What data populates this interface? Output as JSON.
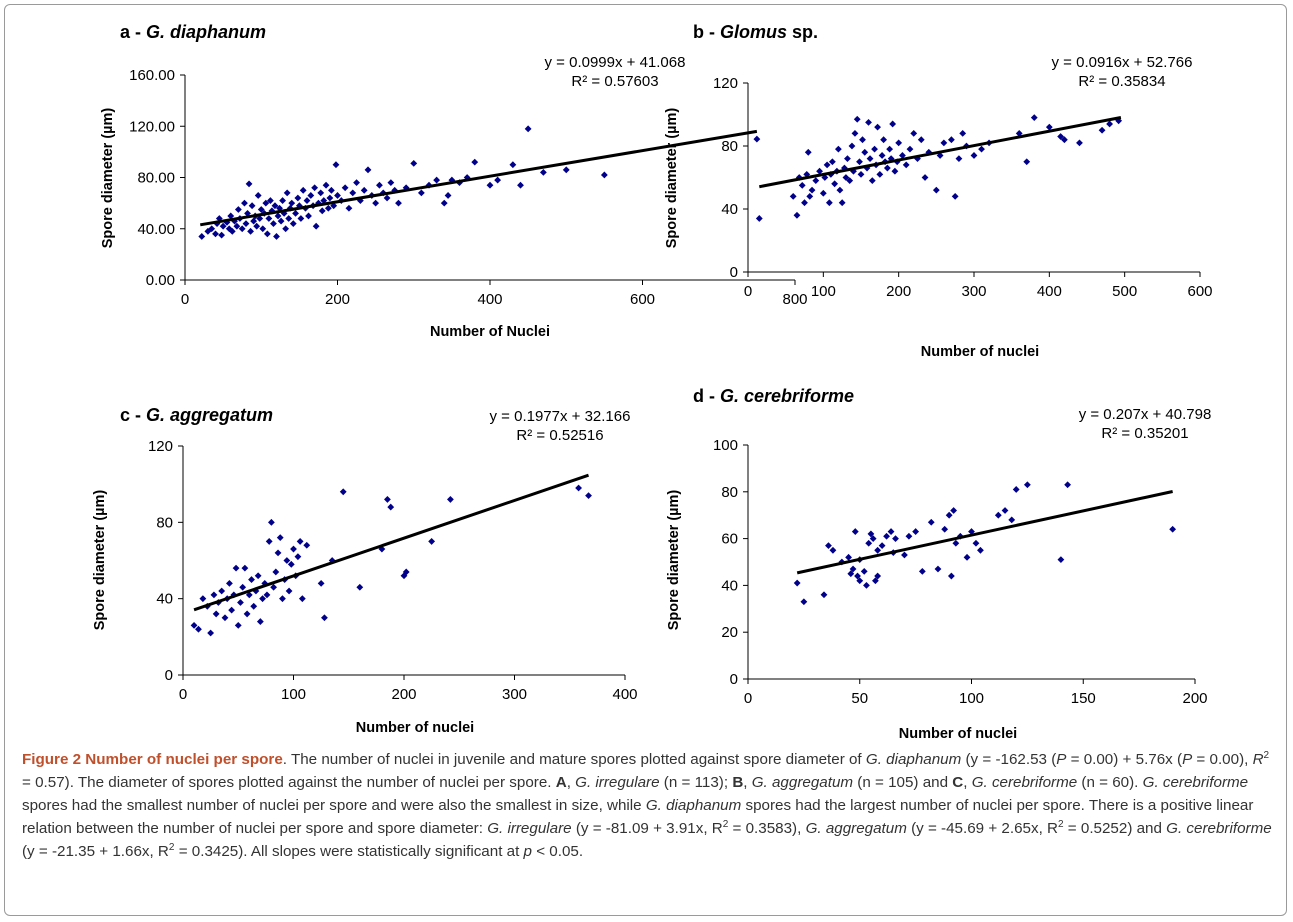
{
  "chart_data": [
    {
      "type": "scatter",
      "title": "G. diaphanum",
      "title_prefix": "a - ",
      "title_italic": true,
      "xlabel": "Number of Nuclei",
      "ylabel": "Spore diameter (µm)",
      "xlim": [
        0,
        800
      ],
      "ylim": [
        0,
        160
      ],
      "xticks": [
        0,
        200,
        400,
        600,
        800
      ],
      "yticks": [
        0,
        40,
        80,
        120,
        160
      ],
      "ytick_labels": [
        "0.00",
        "40.00",
        "80.00",
        "120.00",
        "160.00"
      ],
      "equation": "y = 0.0999x + 41.068",
      "r2": "R² = 0.57603",
      "trendline": {
        "slope": 0.0999,
        "intercept": 41.068,
        "x_range": [
          20,
          750
        ]
      },
      "marker_color": "#00008b",
      "points": [
        [
          22,
          34
        ],
        [
          30,
          38
        ],
        [
          35,
          40
        ],
        [
          40,
          36
        ],
        [
          42,
          44
        ],
        [
          45,
          48
        ],
        [
          48,
          35
        ],
        [
          50,
          42
        ],
        [
          55,
          45
        ],
        [
          58,
          40
        ],
        [
          60,
          50
        ],
        [
          62,
          38
        ],
        [
          65,
          46
        ],
        [
          68,
          42
        ],
        [
          70,
          55
        ],
        [
          72,
          48
        ],
        [
          75,
          40
        ],
        [
          78,
          60
        ],
        [
          80,
          44
        ],
        [
          82,
          52
        ],
        [
          84,
          75
        ],
        [
          86,
          38
        ],
        [
          88,
          58
        ],
        [
          90,
          46
        ],
        [
          92,
          50
        ],
        [
          94,
          42
        ],
        [
          96,
          66
        ],
        [
          98,
          48
        ],
        [
          100,
          55
        ],
        [
          102,
          40
        ],
        [
          104,
          52
        ],
        [
          106,
          60
        ],
        [
          108,
          36
        ],
        [
          110,
          48
        ],
        [
          112,
          62
        ],
        [
          114,
          54
        ],
        [
          116,
          44
        ],
        [
          118,
          58
        ],
        [
          120,
          34
        ],
        [
          122,
          50
        ],
        [
          124,
          56
        ],
        [
          126,
          46
        ],
        [
          128,
          62
        ],
        [
          130,
          52
        ],
        [
          132,
          40
        ],
        [
          134,
          68
        ],
        [
          136,
          48
        ],
        [
          138,
          56
        ],
        [
          140,
          60
        ],
        [
          142,
          44
        ],
        [
          145,
          52
        ],
        [
          148,
          64
        ],
        [
          150,
          58
        ],
        [
          152,
          48
        ],
        [
          155,
          70
        ],
        [
          158,
          56
        ],
        [
          160,
          62
        ],
        [
          162,
          50
        ],
        [
          165,
          66
        ],
        [
          168,
          58
        ],
        [
          170,
          72
        ],
        [
          172,
          42
        ],
        [
          175,
          60
        ],
        [
          178,
          68
        ],
        [
          180,
          54
        ],
        [
          182,
          62
        ],
        [
          185,
          74
        ],
        [
          188,
          56
        ],
        [
          190,
          64
        ],
        [
          192,
          70
        ],
        [
          195,
          58
        ],
        [
          198,
          90
        ],
        [
          200,
          66
        ],
        [
          205,
          62
        ],
        [
          210,
          72
        ],
        [
          215,
          56
        ],
        [
          220,
          68
        ],
        [
          225,
          76
        ],
        [
          230,
          62
        ],
        [
          235,
          70
        ],
        [
          240,
          86
        ],
        [
          245,
          66
        ],
        [
          250,
          60
        ],
        [
          255,
          74
        ],
        [
          260,
          68
        ],
        [
          265,
          64
        ],
        [
          270,
          76
        ],
        [
          275,
          70
        ],
        [
          280,
          60
        ],
        [
          290,
          72
        ],
        [
          300,
          91
        ],
        [
          310,
          68
        ],
        [
          320,
          74
        ],
        [
          330,
          78
        ],
        [
          340,
          60
        ],
        [
          345,
          66
        ],
        [
          350,
          78
        ],
        [
          360,
          76
        ],
        [
          370,
          80
        ],
        [
          380,
          92
        ],
        [
          400,
          74
        ],
        [
          410,
          78
        ],
        [
          430,
          90
        ],
        [
          440,
          74
        ],
        [
          450,
          118
        ],
        [
          470,
          84
        ],
        [
          500,
          86
        ],
        [
          550,
          82
        ],
        [
          750,
          110
        ]
      ]
    },
    {
      "type": "scatter",
      "title_prefix": "b - ",
      "title": "Glomus",
      "title_suffix": " sp.",
      "title_italic": true,
      "xlabel": "Number of nuclei",
      "ylabel": "Spore diameter (µm)",
      "xlim": [
        0,
        600
      ],
      "ylim": [
        0,
        120
      ],
      "xticks": [
        0,
        100,
        200,
        300,
        400,
        500,
        600
      ],
      "yticks": [
        0,
        40,
        80,
        120
      ],
      "ytick_labels": [
        "0",
        "40",
        "80",
        "120"
      ],
      "equation": "y = 0.0916x + 52.766",
      "r2": "R² = 0.35834",
      "trendline": {
        "slope": 0.0916,
        "intercept": 52.766,
        "x_range": [
          15,
          495
        ]
      },
      "marker_color": "#00008b",
      "points": [
        [
          15,
          34
        ],
        [
          60,
          48
        ],
        [
          65,
          36
        ],
        [
          68,
          60
        ],
        [
          72,
          55
        ],
        [
          75,
          44
        ],
        [
          78,
          62
        ],
        [
          80,
          76
        ],
        [
          82,
          48
        ],
        [
          85,
          52
        ],
        [
          90,
          58
        ],
        [
          95,
          64
        ],
        [
          100,
          50
        ],
        [
          102,
          60
        ],
        [
          105,
          68
        ],
        [
          108,
          44
        ],
        [
          110,
          62
        ],
        [
          112,
          70
        ],
        [
          115,
          56
        ],
        [
          118,
          64
        ],
        [
          120,
          78
        ],
        [
          122,
          52
        ],
        [
          125,
          44
        ],
        [
          128,
          66
        ],
        [
          130,
          60
        ],
        [
          132,
          72
        ],
        [
          135,
          58
        ],
        [
          138,
          80
        ],
        [
          140,
          64
        ],
        [
          142,
          88
        ],
        [
          145,
          97
        ],
        [
          148,
          70
        ],
        [
          150,
          62
        ],
        [
          152,
          84
        ],
        [
          155,
          76
        ],
        [
          158,
          66
        ],
        [
          160,
          95
        ],
        [
          162,
          72
        ],
        [
          165,
          58
        ],
        [
          168,
          78
        ],
        [
          170,
          68
        ],
        [
          172,
          92
        ],
        [
          175,
          62
        ],
        [
          178,
          74
        ],
        [
          180,
          84
        ],
        [
          182,
          70
        ],
        [
          185,
          66
        ],
        [
          188,
          78
        ],
        [
          190,
          72
        ],
        [
          192,
          94
        ],
        [
          195,
          64
        ],
        [
          198,
          70
        ],
        [
          200,
          82
        ],
        [
          205,
          74
        ],
        [
          210,
          68
        ],
        [
          215,
          78
        ],
        [
          220,
          88
        ],
        [
          225,
          72
        ],
        [
          230,
          84
        ],
        [
          235,
          60
        ],
        [
          240,
          76
        ],
        [
          250,
          52
        ],
        [
          255,
          74
        ],
        [
          260,
          82
        ],
        [
          270,
          84
        ],
        [
          275,
          48
        ],
        [
          280,
          72
        ],
        [
          285,
          88
        ],
        [
          290,
          80
        ],
        [
          300,
          74
        ],
        [
          310,
          78
        ],
        [
          320,
          82
        ],
        [
          360,
          88
        ],
        [
          370,
          70
        ],
        [
          380,
          98
        ],
        [
          400,
          92
        ],
        [
          415,
          86
        ],
        [
          420,
          84
        ],
        [
          440,
          82
        ],
        [
          470,
          90
        ],
        [
          480,
          94
        ],
        [
          492,
          96
        ]
      ]
    },
    {
      "type": "scatter",
      "title_prefix": "c - ",
      "title": "G. aggregatum",
      "title_italic": true,
      "xlabel": "Number of nuclei",
      "ylabel": "Spore diameter (µm)",
      "xlim": [
        0,
        400
      ],
      "ylim": [
        0,
        120
      ],
      "xticks": [
        0,
        100,
        200,
        300,
        400
      ],
      "yticks": [
        0,
        40,
        80,
        120
      ],
      "ytick_labels": [
        "0",
        "40",
        "80",
        "120"
      ],
      "equation": "y = 0.1977x + 32.166",
      "r2": "R² = 0.52516",
      "trendline": {
        "slope": 0.1977,
        "intercept": 32.166,
        "x_range": [
          10,
          367
        ]
      },
      "marker_color": "#00008b",
      "points": [
        [
          10,
          26
        ],
        [
          14,
          24
        ],
        [
          18,
          40
        ],
        [
          22,
          36
        ],
        [
          25,
          22
        ],
        [
          28,
          42
        ],
        [
          30,
          32
        ],
        [
          32,
          38
        ],
        [
          35,
          44
        ],
        [
          38,
          30
        ],
        [
          40,
          40
        ],
        [
          42,
          48
        ],
        [
          44,
          34
        ],
        [
          46,
          42
        ],
        [
          48,
          56
        ],
        [
          50,
          26
        ],
        [
          52,
          38
        ],
        [
          54,
          46
        ],
        [
          56,
          56
        ],
        [
          58,
          32
        ],
        [
          60,
          42
        ],
        [
          62,
          50
        ],
        [
          64,
          36
        ],
        [
          66,
          44
        ],
        [
          68,
          52
        ],
        [
          70,
          28
        ],
        [
          72,
          40
        ],
        [
          74,
          48
        ],
        [
          76,
          42
        ],
        [
          78,
          70
        ],
        [
          80,
          80
        ],
        [
          82,
          46
        ],
        [
          84,
          54
        ],
        [
          86,
          64
        ],
        [
          88,
          72
        ],
        [
          90,
          40
        ],
        [
          92,
          50
        ],
        [
          94,
          60
        ],
        [
          96,
          44
        ],
        [
          98,
          58
        ],
        [
          100,
          66
        ],
        [
          102,
          52
        ],
        [
          104,
          62
        ],
        [
          106,
          70
        ],
        [
          108,
          40
        ],
        [
          112,
          68
        ],
        [
          125,
          48
        ],
        [
          128,
          30
        ],
        [
          135,
          60
        ],
        [
          145,
          96
        ],
        [
          160,
          46
        ],
        [
          180,
          66
        ],
        [
          185,
          92
        ],
        [
          188,
          88
        ],
        [
          200,
          52
        ],
        [
          202,
          54
        ],
        [
          225,
          70
        ],
        [
          242,
          92
        ],
        [
          358,
          98
        ],
        [
          367,
          94
        ]
      ]
    },
    {
      "type": "scatter",
      "title_prefix": "d - ",
      "title": "G. cerebriforme",
      "title_italic": true,
      "xlabel": "Number of nuclei",
      "ylabel": "Spore diameter (µm)",
      "xlim": [
        0,
        200
      ],
      "ylim": [
        0,
        100
      ],
      "xticks": [
        0,
        50,
        100,
        150,
        200
      ],
      "yticks": [
        0,
        20,
        40,
        60,
        80,
        100
      ],
      "ytick_labels": [
        "0",
        "20",
        "40",
        "60",
        "80",
        "100"
      ],
      "equation": "y = 0.207x + 40.798",
      "r2": "R² = 0.35201",
      "trendline": {
        "slope": 0.207,
        "intercept": 40.798,
        "x_range": [
          22,
          190
        ]
      },
      "marker_color": "#00008b",
      "points": [
        [
          22,
          41
        ],
        [
          25,
          33
        ],
        [
          34,
          36
        ],
        [
          36,
          57
        ],
        [
          38,
          55
        ],
        [
          42,
          50
        ],
        [
          45,
          52
        ],
        [
          46,
          45
        ],
        [
          47,
          47
        ],
        [
          48,
          63
        ],
        [
          49,
          44
        ],
        [
          50,
          42
        ],
        [
          50,
          51
        ],
        [
          52,
          46
        ],
        [
          53,
          40
        ],
        [
          54,
          58
        ],
        [
          55,
          62
        ],
        [
          56,
          60
        ],
        [
          57,
          42
        ],
        [
          58,
          44
        ],
        [
          58,
          55
        ],
        [
          60,
          57
        ],
        [
          62,
          61
        ],
        [
          64,
          63
        ],
        [
          65,
          54
        ],
        [
          66,
          60
        ],
        [
          70,
          53
        ],
        [
          72,
          61
        ],
        [
          75,
          63
        ],
        [
          78,
          46
        ],
        [
          82,
          67
        ],
        [
          85,
          47
        ],
        [
          88,
          64
        ],
        [
          90,
          70
        ],
        [
          91,
          44
        ],
        [
          92,
          72
        ],
        [
          93,
          58
        ],
        [
          95,
          61
        ],
        [
          98,
          52
        ],
        [
          100,
          63
        ],
        [
          102,
          58
        ],
        [
          104,
          55
        ],
        [
          112,
          70
        ],
        [
          115,
          72
        ],
        [
          118,
          68
        ],
        [
          120,
          81
        ],
        [
          125,
          83
        ],
        [
          140,
          51
        ],
        [
          143,
          83
        ],
        [
          190,
          64
        ]
      ]
    }
  ],
  "caption": {
    "figure_label": "Figure 2 Number of nuclei per spore"
  }
}
